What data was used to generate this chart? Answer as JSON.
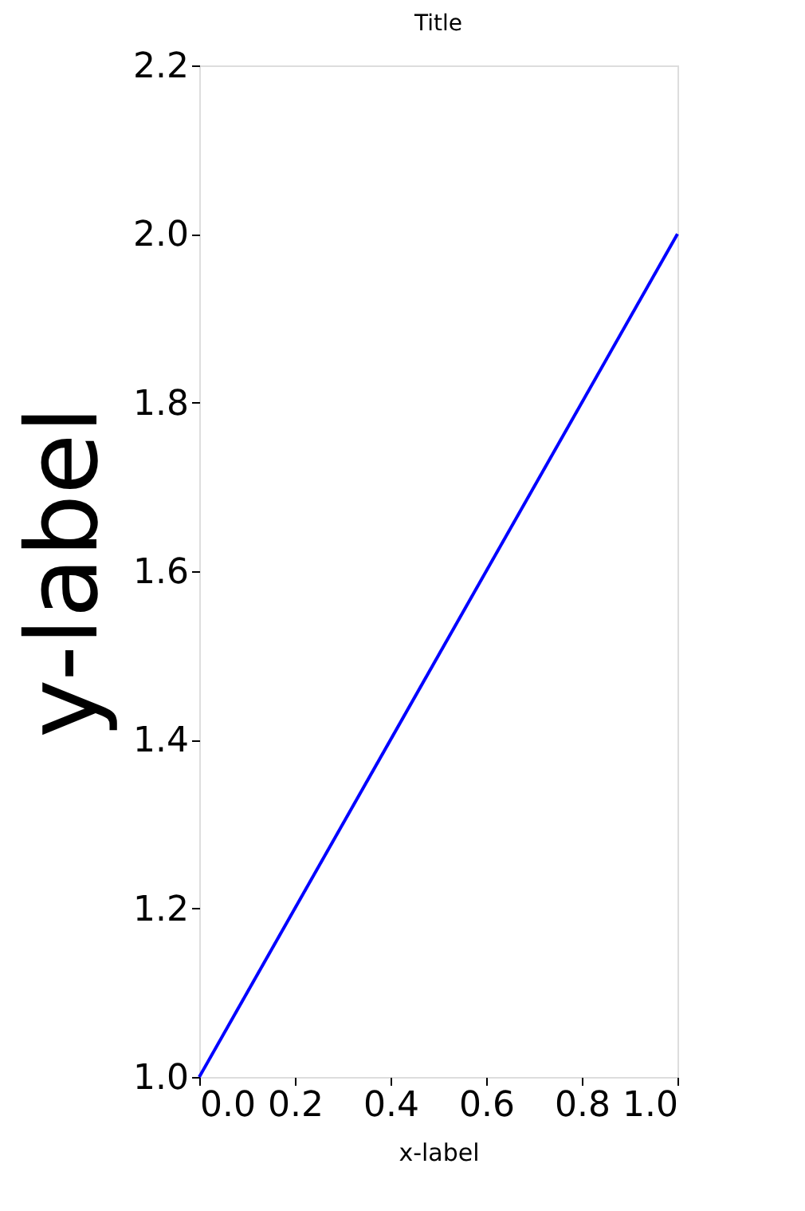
{
  "chart_data": {
    "type": "line",
    "title": "Title",
    "xlabel": "x-label",
    "ylabel": "y-label",
    "x": [
      0,
      1
    ],
    "series": [
      {
        "color": "#0000ff",
        "values": [
          1,
          2
        ]
      }
    ],
    "xlim": [
      0,
      1
    ],
    "ylim": [
      1,
      2.2
    ],
    "xticks": [
      {
        "value": 0,
        "label": "0.0"
      },
      {
        "value": 0.2,
        "label": "0.2"
      },
      {
        "value": 0.4,
        "label": "0.4"
      },
      {
        "value": 0.6,
        "label": "0.6"
      },
      {
        "value": 0.8,
        "label": "0.8"
      },
      {
        "value": 1,
        "label": "1.0"
      }
    ],
    "yticks": [
      {
        "value": 1,
        "label": "1.0"
      },
      {
        "value": 1.2,
        "label": "1.2"
      },
      {
        "value": 1.4,
        "label": "1.4"
      },
      {
        "value": 1.6,
        "label": "1.6"
      },
      {
        "value": 1.8,
        "label": "1.8"
      },
      {
        "value": 2,
        "label": "2.0"
      },
      {
        "value": 2.2,
        "label": "2.2"
      }
    ],
    "grid": false,
    "legend": false,
    "marker": "none",
    "line_style": "solid"
  }
}
